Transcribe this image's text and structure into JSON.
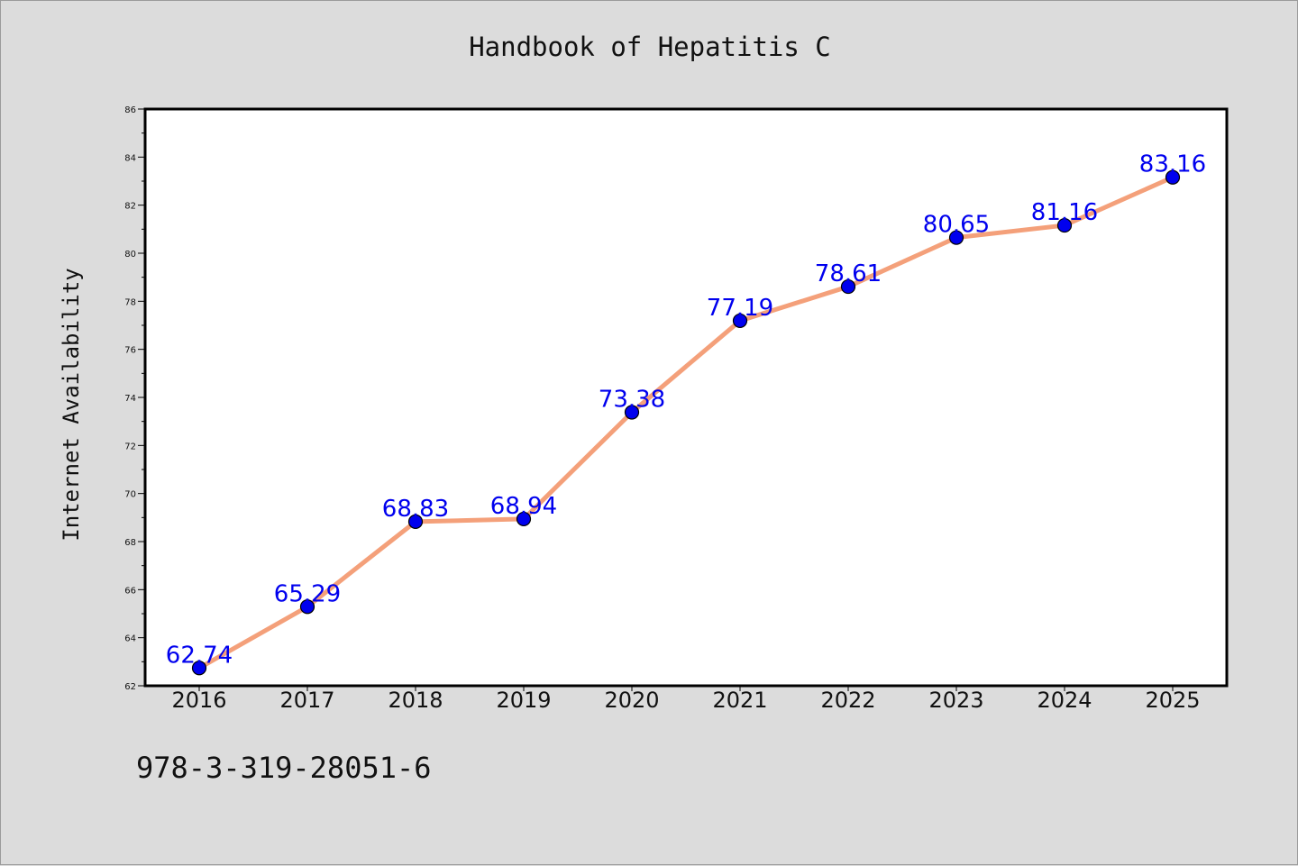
{
  "chart_data": {
    "type": "line",
    "title": "Handbook of Hepatitis C",
    "ylabel": "Internet Availability",
    "xlabel": "",
    "categories": [
      "2016",
      "2017",
      "2018",
      "2019",
      "2020",
      "2021",
      "2022",
      "2023",
      "2024",
      "2025"
    ],
    "values": [
      62.74,
      65.29,
      68.83,
      68.94,
      73.38,
      77.19,
      78.61,
      80.65,
      81.16,
      83.16
    ],
    "value_labels": [
      "62.74",
      "65.29",
      "68.83",
      "68.94",
      "73.38",
      "77.19",
      "78.61",
      "80.65",
      "81.16",
      "83.16"
    ],
    "ylim": [
      62,
      86
    ],
    "yticks": [
      "62",
      "64",
      "66",
      "68",
      "70",
      "72",
      "74",
      "76",
      "78",
      "80",
      "82",
      "84",
      "86"
    ],
    "grid": false,
    "line_color": "#f4a07a",
    "marker_color": "#0000ee",
    "label_color": "#0000ee"
  },
  "footer": {
    "isbn": "978-3-319-28051-6"
  }
}
